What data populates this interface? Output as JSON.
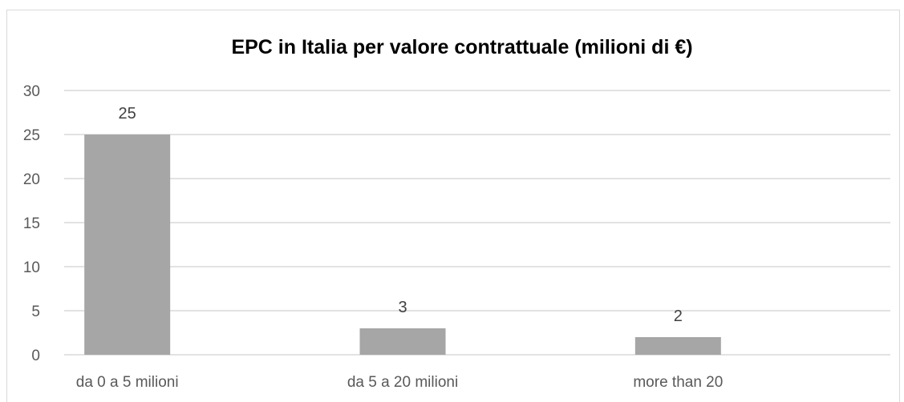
{
  "chart_data": {
    "type": "bar",
    "title": "EPC in Italia per valore contrattuale (milioni di €)",
    "xlabel": "",
    "ylabel": "",
    "categories": [
      "da 0 a 5 milioni",
      "da 5 a 20 milioni",
      "more than 20"
    ],
    "values": [
      25,
      3,
      2
    ],
    "data_labels": [
      "25",
      "3",
      "2"
    ],
    "ylim": [
      0,
      30
    ],
    "yticks": [
      0,
      5,
      10,
      15,
      20,
      25,
      30
    ],
    "ytick_labels": [
      "0",
      "5",
      "10",
      "15",
      "20",
      "25",
      "30"
    ],
    "grid": true,
    "legend": "none",
    "bar_color": "#a6a6a6",
    "grid_color": "#d9d9d9"
  }
}
